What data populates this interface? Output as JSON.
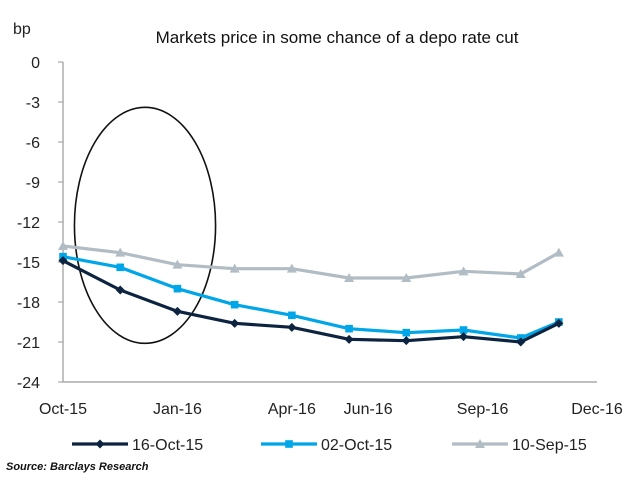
{
  "chart_data": {
    "type": "line",
    "title": "Markets price in some chance of a depo rate cut",
    "ylabel": "bp",
    "xlabel": "",
    "ylim": [
      -24,
      0
    ],
    "yticks": [
      0,
      -3,
      -6,
      -9,
      -12,
      -15,
      -18,
      -21,
      -24
    ],
    "ytick_labels": [
      "0",
      "-3",
      "-6",
      "-9",
      "-12",
      "-15",
      "-18",
      "-21",
      "-24"
    ],
    "xlim": [
      0,
      14
    ],
    "xticks": [
      {
        "label": "Oct-15",
        "x": 0
      },
      {
        "label": "Jan-16",
        "x": 3
      },
      {
        "label": "Apr-16",
        "x": 6
      },
      {
        "label": "Jun-16",
        "x": 8
      },
      {
        "label": "Sep-16",
        "x": 11
      },
      {
        "label": "Dec-16",
        "x": 14
      }
    ],
    "grid": false,
    "legend_position": "bottom",
    "x": [
      0,
      1.5,
      3,
      4.5,
      6,
      7.5,
      9,
      10.5,
      12,
      13
    ],
    "series": [
      {
        "name": "16-Oct-15",
        "color": "#0d2440",
        "marker": "diamond",
        "values": [
          -14.9,
          -17.1,
          -18.7,
          -19.6,
          -19.9,
          -20.8,
          -20.9,
          -20.6,
          -21.0,
          -19.6
        ]
      },
      {
        "name": "02-Oct-15",
        "color": "#00a6e8",
        "marker": "square",
        "values": [
          -14.6,
          -15.4,
          -17.0,
          -18.2,
          -19.0,
          -20.0,
          -20.3,
          -20.1,
          -20.7,
          -19.5
        ]
      },
      {
        "name": "10-Sep-15",
        "color": "#b2bcc4",
        "marker": "triangle",
        "values": [
          -13.8,
          -14.3,
          -15.2,
          -15.5,
          -15.5,
          -16.2,
          -16.2,
          -15.7,
          -15.9,
          -14.3
        ]
      }
    ],
    "annotations": [
      {
        "type": "ellipse",
        "description": "highlight",
        "x_range": [
          0.3,
          4.0
        ],
        "y_range": [
          -21.1,
          -3.4
        ]
      }
    ],
    "source": "Source: Barclays Research"
  }
}
